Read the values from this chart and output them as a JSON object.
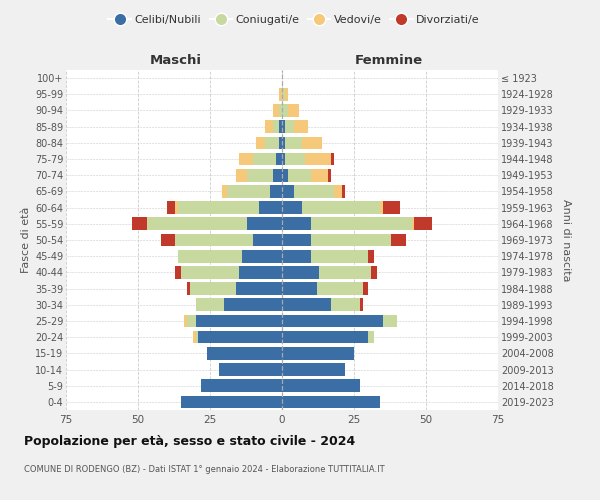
{
  "age_groups": [
    "0-4",
    "5-9",
    "10-14",
    "15-19",
    "20-24",
    "25-29",
    "30-34",
    "35-39",
    "40-44",
    "45-49",
    "50-54",
    "55-59",
    "60-64",
    "65-69",
    "70-74",
    "75-79",
    "80-84",
    "85-89",
    "90-94",
    "95-99",
    "100+"
  ],
  "birth_years": [
    "2019-2023",
    "2014-2018",
    "2009-2013",
    "2004-2008",
    "1999-2003",
    "1994-1998",
    "1989-1993",
    "1984-1988",
    "1979-1983",
    "1974-1978",
    "1969-1973",
    "1964-1968",
    "1959-1963",
    "1954-1958",
    "1949-1953",
    "1944-1948",
    "1939-1943",
    "1934-1938",
    "1929-1933",
    "1924-1928",
    "≤ 1923"
  ],
  "colors": {
    "celibi": "#3a6ea5",
    "coniugati": "#c8d9a0",
    "vedovi": "#f5c87a",
    "divorziati": "#c0392b"
  },
  "male": {
    "celibi": [
      35,
      28,
      22,
      26,
      29,
      30,
      20,
      16,
      15,
      14,
      10,
      12,
      8,
      4,
      3,
      2,
      1,
      1,
      0,
      0,
      0
    ],
    "coniugati": [
      0,
      0,
      0,
      0,
      1,
      3,
      10,
      16,
      20,
      22,
      27,
      35,
      28,
      15,
      9,
      8,
      5,
      2,
      1,
      0,
      0
    ],
    "vedovi": [
      0,
      0,
      0,
      0,
      1,
      1,
      0,
      0,
      0,
      0,
      0,
      0,
      1,
      2,
      4,
      5,
      3,
      3,
      2,
      1,
      0
    ],
    "divorziati": [
      0,
      0,
      0,
      0,
      0,
      0,
      0,
      1,
      2,
      0,
      5,
      5,
      3,
      0,
      0,
      0,
      0,
      0,
      0,
      0,
      0
    ]
  },
  "female": {
    "nubili": [
      34,
      27,
      22,
      25,
      30,
      35,
      17,
      12,
      13,
      10,
      10,
      10,
      7,
      4,
      2,
      1,
      1,
      1,
      0,
      0,
      0
    ],
    "coniugate": [
      0,
      0,
      0,
      0,
      2,
      5,
      10,
      16,
      18,
      20,
      28,
      35,
      27,
      14,
      8,
      7,
      6,
      3,
      2,
      1,
      0
    ],
    "vedove": [
      0,
      0,
      0,
      0,
      0,
      0,
      0,
      0,
      0,
      0,
      0,
      1,
      1,
      3,
      6,
      9,
      7,
      5,
      4,
      1,
      0
    ],
    "divorziate": [
      0,
      0,
      0,
      0,
      0,
      0,
      1,
      2,
      2,
      2,
      5,
      6,
      6,
      1,
      1,
      1,
      0,
      0,
      0,
      0,
      0
    ]
  },
  "xlim": 75,
  "title_main": "Popolazione per età, sesso e stato civile - 2024",
  "title_sub": "COMUNE DI RODENGO (BZ) - Dati ISTAT 1° gennaio 2024 - Elaborazione TUTTITALIA.IT",
  "legend_labels": [
    "Celibi/Nubili",
    "Coniugati/e",
    "Vedovi/e",
    "Divorziati/e"
  ],
  "xlabel_left": "Maschi",
  "xlabel_right": "Femmine",
  "ylabel_left": "Fasce di età",
  "ylabel_right": "Anni di nascita",
  "bg_color": "#f0f0f0",
  "bar_bg": "#ffffff"
}
